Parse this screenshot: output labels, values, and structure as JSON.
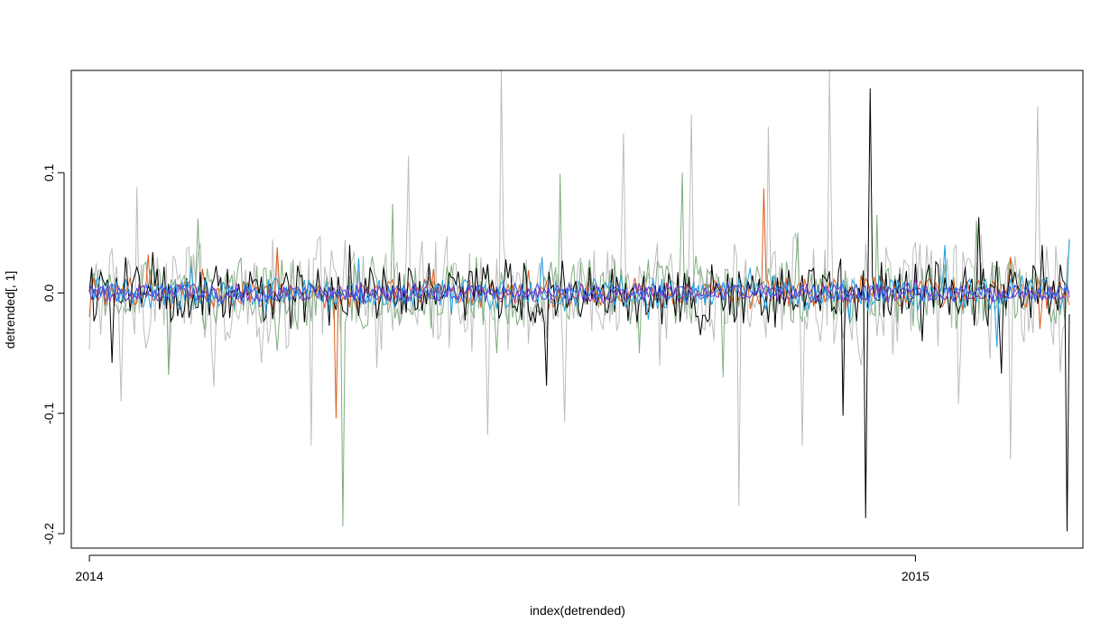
{
  "chart_data": {
    "type": "line",
    "title": "",
    "xlabel": "index(detrended)",
    "ylabel": "detrended[, 1]",
    "x_range": [
      "2013-12-24",
      "2015-03-16"
    ],
    "x_ticks": [
      {
        "date": "2014-01-01",
        "label": "2014"
      },
      {
        "date": "2015-01-01",
        "label": "2015"
      }
    ],
    "ylim": [
      -0.212,
      0.185
    ],
    "y_ticks": [
      0.1,
      0.0,
      -0.1,
      -0.2
    ],
    "y_tick_labels": [
      "0.1",
      "0.0",
      "-0.1",
      "-0.2"
    ],
    "grid": false,
    "legend": "none",
    "x_start": "2014-01-01",
    "x_end": "2015-03-10",
    "series": [
      {
        "color": "#bdbdbd",
        "points": [
          [
            "2014-01-01",
            -0.047
          ],
          [
            "2014-01-15",
            -0.09
          ],
          [
            "2014-01-22",
            0.088
          ],
          [
            "2014-02-05",
            -0.068
          ],
          [
            "2014-02-25",
            -0.078
          ],
          [
            "2014-03-18",
            -0.058
          ],
          [
            "2014-04-09",
            -0.127
          ],
          [
            "2014-05-08",
            -0.062
          ],
          [
            "2014-05-22",
            0.114
          ],
          [
            "2014-06-26",
            -0.118
          ],
          [
            "2014-07-02",
            0.185
          ],
          [
            "2014-07-30",
            -0.107
          ],
          [
            "2014-08-25",
            0.133
          ],
          [
            "2014-09-10",
            -0.06
          ],
          [
            "2014-09-24",
            0.148
          ],
          [
            "2014-10-15",
            -0.177
          ],
          [
            "2014-10-28",
            0.138
          ],
          [
            "2014-11-12",
            -0.127
          ],
          [
            "2014-11-24",
            0.185
          ],
          [
            "2014-12-08",
            -0.06
          ],
          [
            "2015-01-20",
            -0.092
          ],
          [
            "2015-02-03",
            -0.055
          ],
          [
            "2015-02-12",
            -0.138
          ],
          [
            "2015-02-24",
            0.155
          ],
          [
            "2015-03-06",
            -0.066
          ]
        ]
      },
      {
        "color": "#7fae7f",
        "points": [
          [
            "2014-01-01",
            0.0
          ],
          [
            "2014-02-05",
            -0.068
          ],
          [
            "2014-02-18",
            0.062
          ],
          [
            "2014-03-25",
            -0.048
          ],
          [
            "2014-04-23",
            -0.194
          ],
          [
            "2014-05-15",
            0.074
          ],
          [
            "2014-06-30",
            -0.05
          ],
          [
            "2014-07-28",
            0.099
          ],
          [
            "2014-09-01",
            -0.05
          ],
          [
            "2014-09-20",
            0.1
          ],
          [
            "2014-10-08",
            -0.07
          ],
          [
            "2014-11-10",
            0.05
          ],
          [
            "2014-12-15",
            0.065
          ],
          [
            "2015-01-28",
            0.06
          ],
          [
            "2015-03-10",
            0.045
          ]
        ]
      },
      {
        "color": "#e05a1a",
        "points": [
          [
            "2014-01-01",
            -0.02
          ],
          [
            "2014-01-27",
            0.032
          ],
          [
            "2014-02-20",
            0.02
          ],
          [
            "2014-03-25",
            0.038
          ],
          [
            "2014-04-20",
            -0.104
          ],
          [
            "2014-06-02",
            0.02
          ],
          [
            "2014-07-14",
            0.019
          ],
          [
            "2014-08-10",
            0.012
          ],
          [
            "2014-09-18",
            0.014
          ],
          [
            "2014-10-26",
            0.087
          ],
          [
            "2014-12-08",
            0.015
          ],
          [
            "2015-01-18",
            0.01
          ],
          [
            "2015-02-12",
            0.03
          ],
          [
            "2015-02-25",
            -0.03
          ],
          [
            "2015-03-10",
            -0.01
          ]
        ]
      },
      {
        "color": "#000000",
        "points": [
          [
            "2014-01-01",
            0.001
          ],
          [
            "2014-01-11",
            -0.058
          ],
          [
            "2014-01-29",
            0.034
          ],
          [
            "2014-03-03",
            0.02
          ],
          [
            "2014-04-26",
            0.04
          ],
          [
            "2014-07-22",
            -0.077
          ],
          [
            "2014-09-28",
            -0.035
          ],
          [
            "2014-11-30",
            -0.102
          ],
          [
            "2014-12-10",
            -0.187
          ],
          [
            "2014-12-12",
            0.17
          ],
          [
            "2014-12-18",
            -0.02
          ],
          [
            "2015-01-04",
            -0.04
          ],
          [
            "2015-01-29",
            0.063
          ],
          [
            "2015-02-08",
            -0.067
          ],
          [
            "2015-02-26",
            0.04
          ],
          [
            "2015-03-09",
            -0.198
          ]
        ]
      },
      {
        "color": "#1e9fe0",
        "points": [
          [
            "2014-01-01",
            0.002
          ],
          [
            "2014-02-15",
            0.022
          ],
          [
            "2014-03-20",
            -0.018
          ],
          [
            "2014-04-30",
            0.029
          ],
          [
            "2014-06-10",
            -0.018
          ],
          [
            "2014-07-20",
            0.03
          ],
          [
            "2014-09-05",
            -0.022
          ],
          [
            "2014-10-20",
            0.021
          ],
          [
            "2014-12-03",
            -0.024
          ],
          [
            "2015-01-14",
            0.04
          ],
          [
            "2015-02-06",
            -0.045
          ],
          [
            "2015-03-10",
            0.044
          ]
        ]
      },
      {
        "color": "#7a2eb0",
        "points": [
          [
            "2014-01-01",
            0.002
          ],
          [
            "2014-03-01",
            -0.008
          ],
          [
            "2014-05-01",
            0.009
          ],
          [
            "2014-07-01",
            -0.005
          ],
          [
            "2014-09-01",
            0.008
          ],
          [
            "2014-11-01",
            -0.007
          ],
          [
            "2015-01-01",
            0.012
          ],
          [
            "2015-03-10",
            -0.004
          ]
        ]
      },
      {
        "color": "#3355ee",
        "points": [
          [
            "2014-01-01",
            0.003
          ],
          [
            "2014-03-10",
            -0.01
          ],
          [
            "2014-05-20",
            0.007
          ],
          [
            "2014-08-01",
            -0.009
          ],
          [
            "2014-10-10",
            0.01
          ],
          [
            "2014-12-20",
            -0.008
          ],
          [
            "2015-03-10",
            0.0
          ]
        ]
      }
    ]
  }
}
